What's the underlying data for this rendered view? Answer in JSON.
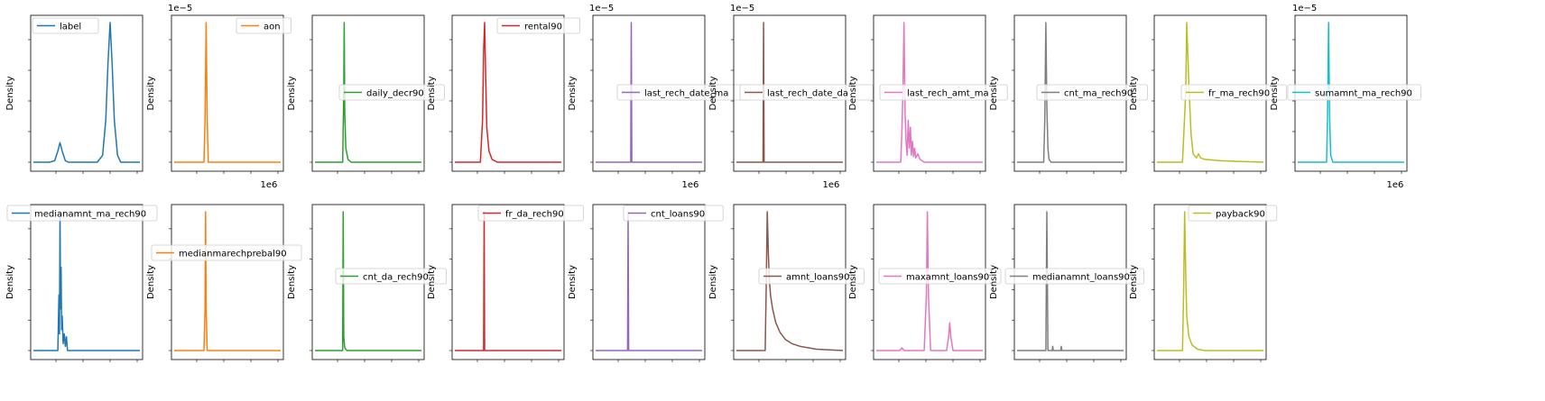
{
  "figure": {
    "ylabel": "Density"
  },
  "chart_data": [
    {
      "type": "line",
      "series": [
        {
          "name": "label",
          "color": "#1f77b4"
        }
      ],
      "ylabel": "Density",
      "sci_top": "",
      "sci_bottom": "",
      "curve": [
        [
          0.0,
          0.0
        ],
        [
          0.15,
          0.0
        ],
        [
          0.2,
          0.01
        ],
        [
          0.23,
          0.08
        ],
        [
          0.25,
          0.14
        ],
        [
          0.27,
          0.08
        ],
        [
          0.3,
          0.01
        ],
        [
          0.33,
          0.0
        ],
        [
          0.6,
          0.0
        ],
        [
          0.65,
          0.05
        ],
        [
          0.68,
          0.3
        ],
        [
          0.7,
          0.7
        ],
        [
          0.72,
          1.0
        ],
        [
          0.74,
          0.7
        ],
        [
          0.76,
          0.3
        ],
        [
          0.79,
          0.05
        ],
        [
          0.82,
          0.0
        ],
        [
          1.0,
          0.0
        ]
      ]
    },
    {
      "type": "line",
      "series": [
        {
          "name": "aon",
          "color": "#ff7f0e"
        }
      ],
      "ylabel": "Density",
      "sci_top": "1e−5",
      "sci_bottom": "1e6",
      "curve": [
        [
          0.0,
          0.0
        ],
        [
          0.28,
          0.0
        ],
        [
          0.29,
          0.3
        ],
        [
          0.3,
          1.0
        ],
        [
          0.31,
          0.3
        ],
        [
          0.32,
          0.0
        ],
        [
          1.0,
          0.0
        ]
      ]
    },
    {
      "type": "line",
      "series": [
        {
          "name": "daily_decr90",
          "color": "#2ca02c"
        }
      ],
      "ylabel": "Density",
      "sci_top": "",
      "sci_bottom": "",
      "curve": [
        [
          0.0,
          0.0
        ],
        [
          0.26,
          0.0
        ],
        [
          0.27,
          0.5
        ],
        [
          0.275,
          1.0
        ],
        [
          0.28,
          0.35
        ],
        [
          0.29,
          0.1
        ],
        [
          0.31,
          0.02
        ],
        [
          0.34,
          0.0
        ],
        [
          1.0,
          0.0
        ]
      ]
    },
    {
      "type": "line",
      "series": [
        {
          "name": "rental90",
          "color": "#d62728"
        }
      ],
      "ylabel": "Density",
      "sci_top": "",
      "sci_bottom": "",
      "curve": [
        [
          0.0,
          0.0
        ],
        [
          0.24,
          0.0
        ],
        [
          0.26,
          0.3
        ],
        [
          0.27,
          0.8
        ],
        [
          0.28,
          1.0
        ],
        [
          0.29,
          0.6
        ],
        [
          0.3,
          0.25
        ],
        [
          0.32,
          0.08
        ],
        [
          0.35,
          0.02
        ],
        [
          0.4,
          0.0
        ],
        [
          1.0,
          0.0
        ]
      ]
    },
    {
      "type": "line",
      "series": [
        {
          "name": "last_rech_date_ma",
          "color": "#9467bd"
        }
      ],
      "ylabel": "Density",
      "sci_top": "1e−5",
      "sci_bottom": "1e6",
      "curve": [
        [
          0.0,
          0.0
        ],
        [
          0.33,
          0.0
        ],
        [
          0.335,
          1.0
        ],
        [
          0.34,
          0.0
        ],
        [
          1.0,
          0.0
        ]
      ]
    },
    {
      "type": "line",
      "series": [
        {
          "name": "last_rech_date_da",
          "color": "#8c564b"
        }
      ],
      "ylabel": "Density",
      "sci_top": "1e−5",
      "sci_bottom": "1e6",
      "curve": [
        [
          0.0,
          0.0
        ],
        [
          0.25,
          0.0
        ],
        [
          0.255,
          1.0
        ],
        [
          0.26,
          0.0
        ],
        [
          1.0,
          0.0
        ]
      ]
    },
    {
      "type": "line",
      "series": [
        {
          "name": "last_rech_amt_ma",
          "color": "#e377c2"
        }
      ],
      "ylabel": "Density",
      "sci_top": "",
      "sci_bottom": "",
      "curve": [
        [
          0.0,
          0.0
        ],
        [
          0.23,
          0.0
        ],
        [
          0.24,
          0.2
        ],
        [
          0.25,
          0.5
        ],
        [
          0.26,
          1.0
        ],
        [
          0.27,
          0.35
        ],
        [
          0.28,
          0.15
        ],
        [
          0.29,
          0.05
        ],
        [
          0.3,
          0.3
        ],
        [
          0.31,
          0.1
        ],
        [
          0.32,
          0.25
        ],
        [
          0.33,
          0.05
        ],
        [
          0.34,
          0.15
        ],
        [
          0.35,
          0.04
        ],
        [
          0.36,
          0.1
        ],
        [
          0.37,
          0.03
        ],
        [
          0.39,
          0.06
        ],
        [
          0.41,
          0.02
        ],
        [
          0.45,
          0.0
        ],
        [
          1.0,
          0.0
        ]
      ]
    },
    {
      "type": "line",
      "series": [
        {
          "name": "cnt_ma_rech90",
          "color": "#7f7f7f"
        }
      ],
      "ylabel": "Density",
      "sci_top": "",
      "sci_bottom": "",
      "curve": [
        [
          0.0,
          0.0
        ],
        [
          0.25,
          0.0
        ],
        [
          0.26,
          0.3
        ],
        [
          0.27,
          1.0
        ],
        [
          0.28,
          0.4
        ],
        [
          0.29,
          0.1
        ],
        [
          0.3,
          0.02
        ],
        [
          0.32,
          0.0
        ],
        [
          1.0,
          0.0
        ]
      ]
    },
    {
      "type": "line",
      "series": [
        {
          "name": "fr_ma_rech90",
          "color": "#bcbd22"
        }
      ],
      "ylabel": "Density",
      "sci_top": "",
      "sci_bottom": "",
      "curve": [
        [
          0.0,
          0.0
        ],
        [
          0.24,
          0.0
        ],
        [
          0.27,
          0.5
        ],
        [
          0.28,
          1.0
        ],
        [
          0.3,
          0.55
        ],
        [
          0.32,
          0.2
        ],
        [
          0.34,
          0.06
        ],
        [
          0.37,
          0.03
        ],
        [
          0.39,
          0.06
        ],
        [
          0.41,
          0.03
        ],
        [
          0.45,
          0.02
        ],
        [
          0.6,
          0.01
        ],
        [
          0.8,
          0.005
        ],
        [
          1.0,
          0.0
        ]
      ]
    },
    {
      "type": "line",
      "series": [
        {
          "name": "sumamnt_ma_rech90",
          "color": "#17becf"
        }
      ],
      "ylabel": "Density",
      "sci_top": "1e−5",
      "sci_bottom": "1e6",
      "curve": [
        [
          0.0,
          0.0
        ],
        [
          0.27,
          0.0
        ],
        [
          0.28,
          0.3
        ],
        [
          0.29,
          1.0
        ],
        [
          0.3,
          0.3
        ],
        [
          0.31,
          0.05
        ],
        [
          0.33,
          0.0
        ],
        [
          1.0,
          0.0
        ]
      ]
    },
    {
      "type": "line",
      "series": [
        {
          "name": "medianamnt_ma_rech90",
          "color": "#1f77b4"
        }
      ],
      "ylabel": "Density",
      "sci_top": "",
      "sci_bottom": "",
      "curve": [
        [
          0.0,
          0.0
        ],
        [
          0.23,
          0.0
        ],
        [
          0.24,
          0.4
        ],
        [
          0.245,
          0.12
        ],
        [
          0.25,
          1.0
        ],
        [
          0.255,
          0.3
        ],
        [
          0.26,
          0.6
        ],
        [
          0.265,
          0.15
        ],
        [
          0.27,
          0.25
        ],
        [
          0.28,
          0.05
        ],
        [
          0.29,
          0.12
        ],
        [
          0.3,
          0.03
        ],
        [
          0.31,
          0.1
        ],
        [
          0.32,
          0.0
        ],
        [
          1.0,
          0.0
        ]
      ]
    },
    {
      "type": "line",
      "series": [
        {
          "name": "medianmarechprebal90",
          "color": "#ff7f0e"
        }
      ],
      "ylabel": "Density",
      "sci_top": "",
      "sci_bottom": "",
      "curve": [
        [
          0.0,
          0.0
        ],
        [
          0.28,
          0.0
        ],
        [
          0.29,
          0.3
        ],
        [
          0.295,
          1.0
        ],
        [
          0.3,
          0.3
        ],
        [
          0.31,
          0.0
        ],
        [
          1.0,
          0.0
        ]
      ]
    },
    {
      "type": "line",
      "series": [
        {
          "name": "cnt_da_rech90",
          "color": "#2ca02c"
        }
      ],
      "ylabel": "Density",
      "sci_top": "",
      "sci_bottom": "",
      "curve": [
        [
          0.0,
          0.0
        ],
        [
          0.26,
          0.0
        ],
        [
          0.265,
          1.0
        ],
        [
          0.27,
          0.1
        ],
        [
          0.28,
          0.02
        ],
        [
          0.3,
          0.0
        ],
        [
          1.0,
          0.0
        ]
      ]
    },
    {
      "type": "line",
      "series": [
        {
          "name": "fr_da_rech90",
          "color": "#d62728"
        }
      ],
      "ylabel": "Density",
      "sci_top": "",
      "sci_bottom": "",
      "curve": [
        [
          0.0,
          0.0
        ],
        [
          0.27,
          0.0
        ],
        [
          0.275,
          1.0
        ],
        [
          0.28,
          0.0
        ],
        [
          1.0,
          0.0
        ]
      ]
    },
    {
      "type": "line",
      "series": [
        {
          "name": "cnt_loans90",
          "color": "#9467bd"
        }
      ],
      "ylabel": "Density",
      "sci_top": "",
      "sci_bottom": "",
      "curve": [
        [
          0.0,
          0.0
        ],
        [
          0.3,
          0.0
        ],
        [
          0.305,
          1.0
        ],
        [
          0.31,
          0.0
        ],
        [
          1.0,
          0.0
        ]
      ]
    },
    {
      "type": "line",
      "series": [
        {
          "name": "amnt_loans90",
          "color": "#8c564b"
        }
      ],
      "ylabel": "Density",
      "sci_top": "",
      "sci_bottom": "",
      "curve": [
        [
          0.0,
          0.0
        ],
        [
          0.27,
          0.0
        ],
        [
          0.28,
          0.45
        ],
        [
          0.29,
          1.0
        ],
        [
          0.3,
          0.7
        ],
        [
          0.31,
          0.5
        ],
        [
          0.32,
          0.4
        ],
        [
          0.34,
          0.3
        ],
        [
          0.37,
          0.2
        ],
        [
          0.41,
          0.13
        ],
        [
          0.46,
          0.08
        ],
        [
          0.52,
          0.05
        ],
        [
          0.6,
          0.03
        ],
        [
          0.75,
          0.01
        ],
        [
          1.0,
          0.0
        ]
      ]
    },
    {
      "type": "line",
      "series": [
        {
          "name": "maxamnt_loans90",
          "color": "#e377c2"
        }
      ],
      "ylabel": "Density",
      "sci_top": "",
      "sci_bottom": "",
      "curve": [
        [
          0.0,
          0.0
        ],
        [
          0.22,
          0.0
        ],
        [
          0.24,
          0.02
        ],
        [
          0.26,
          0.0
        ],
        [
          0.45,
          0.0
        ],
        [
          0.47,
          0.4
        ],
        [
          0.48,
          1.0
        ],
        [
          0.49,
          0.4
        ],
        [
          0.51,
          0.0
        ],
        [
          0.66,
          0.0
        ],
        [
          0.68,
          0.1
        ],
        [
          0.69,
          0.2
        ],
        [
          0.7,
          0.1
        ],
        [
          0.72,
          0.0
        ],
        [
          1.0,
          0.0
        ]
      ]
    },
    {
      "type": "line",
      "series": [
        {
          "name": "medianamnt_loans90",
          "color": "#7f7f7f"
        }
      ],
      "ylabel": "Density",
      "sci_top": "",
      "sci_bottom": "",
      "curve": [
        [
          0.0,
          0.0
        ],
        [
          0.27,
          0.0
        ],
        [
          0.28,
          1.0
        ],
        [
          0.29,
          0.0
        ],
        [
          0.33,
          0.0
        ],
        [
          0.335,
          0.03
        ],
        [
          0.34,
          0.0
        ],
        [
          0.41,
          0.0
        ],
        [
          0.415,
          0.03
        ],
        [
          0.42,
          0.0
        ],
        [
          1.0,
          0.0
        ]
      ]
    },
    {
      "type": "line",
      "series": [
        {
          "name": "payback90",
          "color": "#bcbd22"
        }
      ],
      "ylabel": "Density",
      "sci_top": "",
      "sci_bottom": "",
      "curve": [
        [
          0.0,
          0.0
        ],
        [
          0.24,
          0.0
        ],
        [
          0.25,
          0.4
        ],
        [
          0.26,
          1.0
        ],
        [
          0.27,
          0.55
        ],
        [
          0.28,
          0.25
        ],
        [
          0.3,
          0.1
        ],
        [
          0.33,
          0.04
        ],
        [
          0.38,
          0.01
        ],
        [
          0.45,
          0.0
        ],
        [
          1.0,
          0.0
        ]
      ]
    }
  ]
}
